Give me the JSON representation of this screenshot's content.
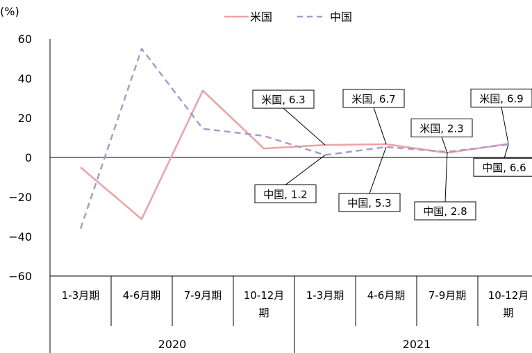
{
  "chart_data": {
    "type": "line",
    "ylabel": "(%)",
    "ylim": [
      -60,
      60
    ],
    "yticks": [
      60,
      40,
      20,
      0,
      -20,
      -40,
      -60
    ],
    "ytick_labels": [
      "60",
      "40",
      "20",
      "0",
      "−20",
      "−40",
      "−60"
    ],
    "categories": [
      [
        "1-3月期"
      ],
      [
        "4-6月期"
      ],
      [
        "7-9月期"
      ],
      [
        "10-12月",
        "期"
      ],
      [
        "1-3月期"
      ],
      [
        "4-6月期"
      ],
      [
        "7-9月期"
      ],
      [
        "10-12月",
        "期"
      ]
    ],
    "years": [
      {
        "label": "2020",
        "span": [
          0,
          3
        ]
      },
      {
        "label": "2021",
        "span": [
          4,
          7
        ]
      }
    ],
    "grid": false,
    "legend_position": "top-center",
    "series": [
      {
        "name": "米国",
        "color": "#f0a0a4",
        "dash": "solid",
        "values": [
          -5.0,
          -31.2,
          33.8,
          4.5,
          6.3,
          6.7,
          2.3,
          6.9
        ]
      },
      {
        "name": "中国",
        "color": "#a89ad0",
        "dash": "dashed",
        "values": [
          -36.0,
          55.0,
          14.5,
          10.9,
          1.2,
          5.3,
          2.8,
          6.6
        ]
      }
    ],
    "annotations": [
      {
        "text": "米国, 6.3",
        "series": 0,
        "index": 4
      },
      {
        "text": "米国, 6.7",
        "series": 0,
        "index": 5
      },
      {
        "text": "米国, 2.3",
        "series": 0,
        "index": 6
      },
      {
        "text": "米国, 6.9",
        "series": 0,
        "index": 7
      },
      {
        "text": "中国, 1.2",
        "series": 1,
        "index": 4
      },
      {
        "text": "中国, 5.3",
        "series": 1,
        "index": 5
      },
      {
        "text": "中国, 2.8",
        "series": 1,
        "index": 6
      },
      {
        "text": "中国, 6.6",
        "series": 1,
        "index": 7
      }
    ]
  }
}
